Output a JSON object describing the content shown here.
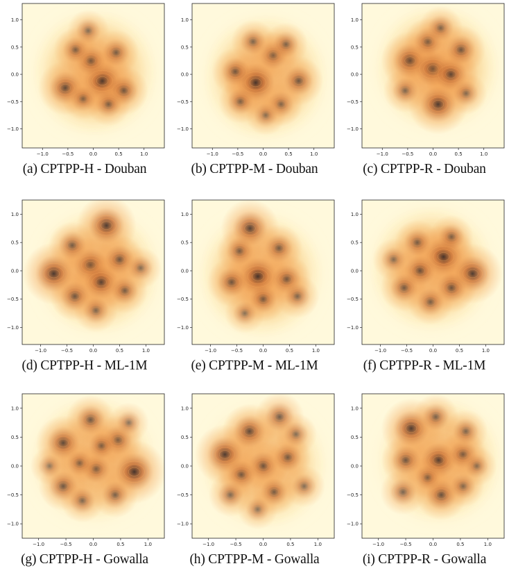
{
  "colors": {
    "background": "#fff9dc",
    "low": "#fde9b0",
    "mid": "#f09a4a",
    "high": "#c0662e",
    "peak": "#3c2a24",
    "contour": "#ffb060"
  },
  "chart_data": [
    {
      "type": "heatmap",
      "subtitle": "(a) CPTPP-H - Douban",
      "xlim": [
        -1.4,
        1.4
      ],
      "ylim": [
        -1.35,
        1.3
      ],
      "xticks": [
        -1.0,
        -0.5,
        0.0,
        0.5,
        1.0
      ],
      "yticks": [
        1.0,
        0.5,
        0.0,
        -0.5,
        -1.0
      ],
      "xtick_labels": [
        "−1.0",
        "−0.5",
        "0.0",
        "0.5",
        "1.0"
      ],
      "ytick_labels": [
        "1.0",
        "0.5",
        "0.0",
        "−0.5",
        "−1.0"
      ],
      "density_peaks": [
        {
          "x": 0.18,
          "y": -0.12,
          "w": 1.0
        },
        {
          "x": -0.55,
          "y": -0.25,
          "w": 0.75
        },
        {
          "x": -0.05,
          "y": 0.25,
          "w": 0.6
        },
        {
          "x": 0.6,
          "y": -0.3,
          "w": 0.6
        },
        {
          "x": 0.45,
          "y": 0.4,
          "w": 0.5
        },
        {
          "x": -0.35,
          "y": 0.45,
          "w": 0.45
        },
        {
          "x": -0.1,
          "y": 0.8,
          "w": 0.4
        },
        {
          "x": 0.3,
          "y": -0.55,
          "w": 0.45
        },
        {
          "x": -0.2,
          "y": -0.45,
          "w": 0.4
        }
      ]
    },
    {
      "type": "heatmap",
      "subtitle": "(b) CPTPP-M - Douban",
      "xlim": [
        -1.4,
        1.4
      ],
      "ylim": [
        -1.35,
        1.3
      ],
      "xticks": [
        -1.0,
        -0.5,
        0.0,
        0.5,
        1.0
      ],
      "yticks": [
        1.0,
        0.5,
        0.0,
        -0.5,
        -1.0
      ],
      "xtick_labels": [
        "−1.0",
        "−0.5",
        "0.0",
        "0.5",
        "1.0"
      ],
      "ytick_labels": [
        "1.0",
        "0.5",
        "0.0",
        "−0.5",
        "−1.0"
      ],
      "density_peaks": [
        {
          "x": -0.15,
          "y": -0.15,
          "w": 1.0
        },
        {
          "x": 0.7,
          "y": -0.12,
          "w": 0.6
        },
        {
          "x": -0.55,
          "y": 0.05,
          "w": 0.55
        },
        {
          "x": 0.2,
          "y": 0.35,
          "w": 0.55
        },
        {
          "x": -0.2,
          "y": 0.6,
          "w": 0.45
        },
        {
          "x": 0.45,
          "y": 0.55,
          "w": 0.45
        },
        {
          "x": -0.45,
          "y": -0.5,
          "w": 0.45
        },
        {
          "x": 0.35,
          "y": -0.55,
          "w": 0.45
        },
        {
          "x": 0.05,
          "y": -0.75,
          "w": 0.35
        }
      ]
    },
    {
      "type": "heatmap",
      "subtitle": "(c) CPTPP-R - Douban",
      "xlim": [
        -1.4,
        1.4
      ],
      "ylim": [
        -1.35,
        1.3
      ],
      "xticks": [
        -1.0,
        -0.5,
        0.0,
        0.5,
        1.0
      ],
      "yticks": [
        1.0,
        0.5,
        0.0,
        -0.5,
        -1.0
      ],
      "xtick_labels": [
        "−1.0",
        "−0.5",
        "0.0",
        "0.5",
        "1.0"
      ],
      "ytick_labels": [
        "1.0",
        "0.5",
        "0.0",
        "−0.5",
        "−1.0"
      ],
      "density_peaks": [
        {
          "x": 0.1,
          "y": -0.55,
          "w": 0.9
        },
        {
          "x": -0.45,
          "y": 0.25,
          "w": 0.85
        },
        {
          "x": 0.0,
          "y": 0.1,
          "w": 0.85
        },
        {
          "x": 0.35,
          "y": 0.0,
          "w": 0.75
        },
        {
          "x": 0.55,
          "y": 0.45,
          "w": 0.6
        },
        {
          "x": -0.1,
          "y": 0.6,
          "w": 0.55
        },
        {
          "x": 0.15,
          "y": 0.85,
          "w": 0.45
        },
        {
          "x": -0.55,
          "y": -0.3,
          "w": 0.45
        },
        {
          "x": 0.65,
          "y": -0.35,
          "w": 0.4
        }
      ]
    },
    {
      "type": "heatmap",
      "subtitle": "(d) CPTPP-H - ML-1M",
      "xlim": [
        -1.35,
        1.35
      ],
      "ylim": [
        -1.3,
        1.25
      ],
      "xticks": [
        -1.0,
        -0.5,
        0.0,
        0.5,
        1.0
      ],
      "yticks": [
        1.0,
        0.5,
        0.0,
        -0.5,
        -1.0
      ],
      "xtick_labels": [
        "−1.0",
        "−0.5",
        "0.0",
        "0.5",
        "1.0"
      ],
      "ytick_labels": [
        "1.0",
        "0.5",
        "0.0",
        "−0.5",
        "−1.0"
      ],
      "density_peaks": [
        {
          "x": -0.75,
          "y": -0.05,
          "w": 0.95
        },
        {
          "x": 0.25,
          "y": 0.8,
          "w": 0.9
        },
        {
          "x": -0.05,
          "y": 0.1,
          "w": 0.8
        },
        {
          "x": 0.15,
          "y": -0.2,
          "w": 0.8
        },
        {
          "x": -0.35,
          "y": -0.45,
          "w": 0.6
        },
        {
          "x": 0.5,
          "y": 0.2,
          "w": 0.6
        },
        {
          "x": 0.6,
          "y": -0.35,
          "w": 0.5
        },
        {
          "x": -0.4,
          "y": 0.45,
          "w": 0.55
        },
        {
          "x": 0.05,
          "y": -0.7,
          "w": 0.45
        },
        {
          "x": 0.9,
          "y": 0.05,
          "w": 0.4
        }
      ]
    },
    {
      "type": "heatmap",
      "subtitle": "(e) CPTPP-M - ML-1M",
      "xlim": [
        -1.35,
        1.35
      ],
      "ylim": [
        -1.3,
        1.25
      ],
      "xticks": [
        -1.0,
        -0.5,
        0.0,
        0.5,
        1.0
      ],
      "yticks": [
        1.0,
        0.5,
        0.0,
        -0.5,
        -1.0
      ],
      "xtick_labels": [
        "−1.0",
        "−0.5",
        "0.0",
        "0.5",
        "1.0"
      ],
      "ytick_labels": [
        "1.0",
        "0.5",
        "0.0",
        "−0.5",
        "−1.0"
      ],
      "density_peaks": [
        {
          "x": -0.1,
          "y": -0.1,
          "w": 1.0
        },
        {
          "x": -0.25,
          "y": 0.75,
          "w": 0.85
        },
        {
          "x": 0.45,
          "y": -0.15,
          "w": 0.6
        },
        {
          "x": -0.6,
          "y": -0.2,
          "w": 0.6
        },
        {
          "x": 0.3,
          "y": 0.4,
          "w": 0.55
        },
        {
          "x": -0.45,
          "y": 0.35,
          "w": 0.5
        },
        {
          "x": 0.0,
          "y": -0.5,
          "w": 0.5
        },
        {
          "x": 0.65,
          "y": -0.45,
          "w": 0.45
        },
        {
          "x": -0.35,
          "y": -0.75,
          "w": 0.35
        }
      ]
    },
    {
      "type": "heatmap",
      "subtitle": "(f) CPTPP-R - ML-1M",
      "xlim": [
        -1.35,
        1.35
      ],
      "ylim": [
        -1.3,
        1.25
      ],
      "xticks": [
        -1.0,
        -0.5,
        0.0,
        0.5,
        1.0
      ],
      "yticks": [
        1.0,
        0.5,
        0.0,
        -0.5,
        -1.0
      ],
      "xtick_labels": [
        "−1.0",
        "−0.5",
        "0.0",
        "0.5",
        "1.0"
      ],
      "ytick_labels": [
        "1.0",
        "0.5",
        "0.0",
        "−0.5",
        "−1.0"
      ],
      "density_peaks": [
        {
          "x": 0.2,
          "y": 0.25,
          "w": 1.0
        },
        {
          "x": 0.75,
          "y": -0.05,
          "w": 0.9
        },
        {
          "x": -0.25,
          "y": 0.0,
          "w": 0.65
        },
        {
          "x": 0.35,
          "y": -0.3,
          "w": 0.6
        },
        {
          "x": -0.55,
          "y": -0.3,
          "w": 0.55
        },
        {
          "x": -0.05,
          "y": -0.55,
          "w": 0.5
        },
        {
          "x": -0.3,
          "y": 0.5,
          "w": 0.5
        },
        {
          "x": 0.35,
          "y": 0.6,
          "w": 0.45
        },
        {
          "x": -0.75,
          "y": 0.2,
          "w": 0.4
        }
      ]
    },
    {
      "type": "heatmap",
      "subtitle": "(g) CPTPP-H - Gowalla",
      "xlim": [
        -1.3,
        1.3
      ],
      "ylim": [
        -1.25,
        1.25
      ],
      "xticks": [
        -1.0,
        -0.5,
        0.0,
        0.5,
        1.0
      ],
      "yticks": [
        1.0,
        0.5,
        0.0,
        -0.5,
        -1.0
      ],
      "xtick_labels": [
        "−1.0",
        "−0.5",
        "0.0",
        "0.5",
        "1.0"
      ],
      "ytick_labels": [
        "1.0",
        "0.5",
        "0.0",
        "−0.5",
        "−1.0"
      ],
      "density_peaks": [
        {
          "x": 0.75,
          "y": -0.1,
          "w": 1.0
        },
        {
          "x": -0.55,
          "y": 0.4,
          "w": 0.75
        },
        {
          "x": -0.05,
          "y": 0.8,
          "w": 0.6
        },
        {
          "x": 0.45,
          "y": 0.45,
          "w": 0.6
        },
        {
          "x": -0.55,
          "y": -0.35,
          "w": 0.6
        },
        {
          "x": 0.05,
          "y": -0.05,
          "w": 0.55
        },
        {
          "x": 0.4,
          "y": -0.5,
          "w": 0.5
        },
        {
          "x": -0.2,
          "y": -0.6,
          "w": 0.45
        },
        {
          "x": 0.15,
          "y": 0.35,
          "w": 0.45
        },
        {
          "x": -0.25,
          "y": 0.05,
          "w": 0.4
        },
        {
          "x": 0.65,
          "y": 0.75,
          "w": 0.35
        },
        {
          "x": -0.8,
          "y": 0.0,
          "w": 0.3
        }
      ]
    },
    {
      "type": "heatmap",
      "subtitle": "(h) CPTPP-M - Gowalla",
      "xlim": [
        -1.3,
        1.3
      ],
      "ylim": [
        -1.25,
        1.25
      ],
      "xticks": [
        -1.0,
        -0.5,
        0.0,
        0.5,
        1.0
      ],
      "yticks": [
        1.0,
        0.5,
        0.0,
        -0.5,
        -1.0
      ],
      "xtick_labels": [
        "−1.0",
        "−0.5",
        "0.0",
        "0.5",
        "1.0"
      ],
      "ytick_labels": [
        "1.0",
        "0.5",
        "0.0",
        "−0.5",
        "−1.0"
      ],
      "density_peaks": [
        {
          "x": -0.7,
          "y": 0.2,
          "w": 0.9
        },
        {
          "x": -0.25,
          "y": 0.6,
          "w": 0.75
        },
        {
          "x": 0.3,
          "y": 0.85,
          "w": 0.6
        },
        {
          "x": 0.0,
          "y": 0.0,
          "w": 0.6
        },
        {
          "x": 0.45,
          "y": 0.15,
          "w": 0.55
        },
        {
          "x": -0.4,
          "y": -0.15,
          "w": 0.55
        },
        {
          "x": 0.2,
          "y": -0.45,
          "w": 0.5
        },
        {
          "x": -0.6,
          "y": -0.5,
          "w": 0.45
        },
        {
          "x": 0.75,
          "y": -0.35,
          "w": 0.4
        },
        {
          "x": 0.6,
          "y": 0.55,
          "w": 0.4
        },
        {
          "x": -0.1,
          "y": -0.75,
          "w": 0.35
        }
      ]
    },
    {
      "type": "heatmap",
      "subtitle": "(i) CPTPP-R - Gowalla",
      "xlim": [
        -1.3,
        1.3
      ],
      "ylim": [
        -1.25,
        1.25
      ],
      "xticks": [
        -1.0,
        -0.5,
        0.0,
        0.5,
        1.0
      ],
      "yticks": [
        1.0,
        0.5,
        0.0,
        -0.5,
        -1.0
      ],
      "xtick_labels": [
        "−1.0",
        "−0.5",
        "0.0",
        "0.5",
        "1.0"
      ],
      "ytick_labels": [
        "1.0",
        "0.5",
        "0.0",
        "−0.5",
        "−1.0"
      ],
      "density_peaks": [
        {
          "x": -0.4,
          "y": 0.65,
          "w": 0.9
        },
        {
          "x": 0.1,
          "y": 0.1,
          "w": 0.85
        },
        {
          "x": 0.15,
          "y": -0.5,
          "w": 0.65
        },
        {
          "x": -0.5,
          "y": 0.1,
          "w": 0.6
        },
        {
          "x": 0.55,
          "y": 0.2,
          "w": 0.55
        },
        {
          "x": 0.05,
          "y": 0.85,
          "w": 0.5
        },
        {
          "x": -0.55,
          "y": -0.45,
          "w": 0.5
        },
        {
          "x": 0.6,
          "y": 0.6,
          "w": 0.45
        },
        {
          "x": 0.55,
          "y": -0.35,
          "w": 0.4
        },
        {
          "x": -0.1,
          "y": -0.2,
          "w": 0.4
        },
        {
          "x": 0.8,
          "y": 0.0,
          "w": 0.35
        }
      ]
    }
  ]
}
